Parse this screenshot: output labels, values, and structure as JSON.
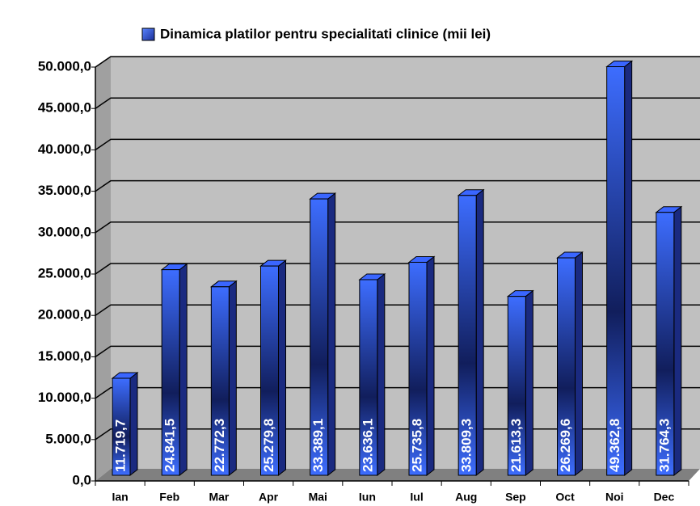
{
  "chart_data": {
    "type": "bar3d",
    "categories": [
      "Ian",
      "Feb",
      "Mar",
      "Apr",
      "Mai",
      "Iun",
      "Iul",
      "Aug",
      "Sep",
      "Oct",
      "Noi",
      "Dec"
    ],
    "series": [
      {
        "name": "Dinamica platilor pentru specialitati clinice (mii lei)",
        "color": "#2f5fff",
        "values": [
          11719.7,
          24841.5,
          22772.3,
          25279.8,
          33389.1,
          23636.1,
          25735.8,
          33809.3,
          21613.3,
          26269.6,
          49362.8,
          31764.3
        ],
        "value_labels": [
          "11.719,7",
          "24.841,5",
          "22.772,3",
          "25.279,8",
          "33.389,1",
          "23.636,1",
          "25.735,8",
          "33.809,3",
          "21.613,3",
          "26.269,6",
          "49.362,8",
          "31.764,3"
        ]
      }
    ],
    "ylim": [
      0,
      50000
    ],
    "yticks": [
      {
        "value": 0,
        "label": "0,0"
      },
      {
        "value": 5000,
        "label": "5.000,0"
      },
      {
        "value": 10000,
        "label": "10.000,0"
      },
      {
        "value": 15000,
        "label": "15.000,0"
      },
      {
        "value": 20000,
        "label": "20.000,0"
      },
      {
        "value": 25000,
        "label": "25.000,0"
      },
      {
        "value": 30000,
        "label": "30.000,0"
      },
      {
        "value": 35000,
        "label": "35.000,0"
      },
      {
        "value": 40000,
        "label": "40.000,0"
      },
      {
        "value": 45000,
        "label": "45.000,0"
      },
      {
        "value": 50000,
        "label": "50.000,0"
      }
    ],
    "grid": true,
    "legend": "top"
  }
}
